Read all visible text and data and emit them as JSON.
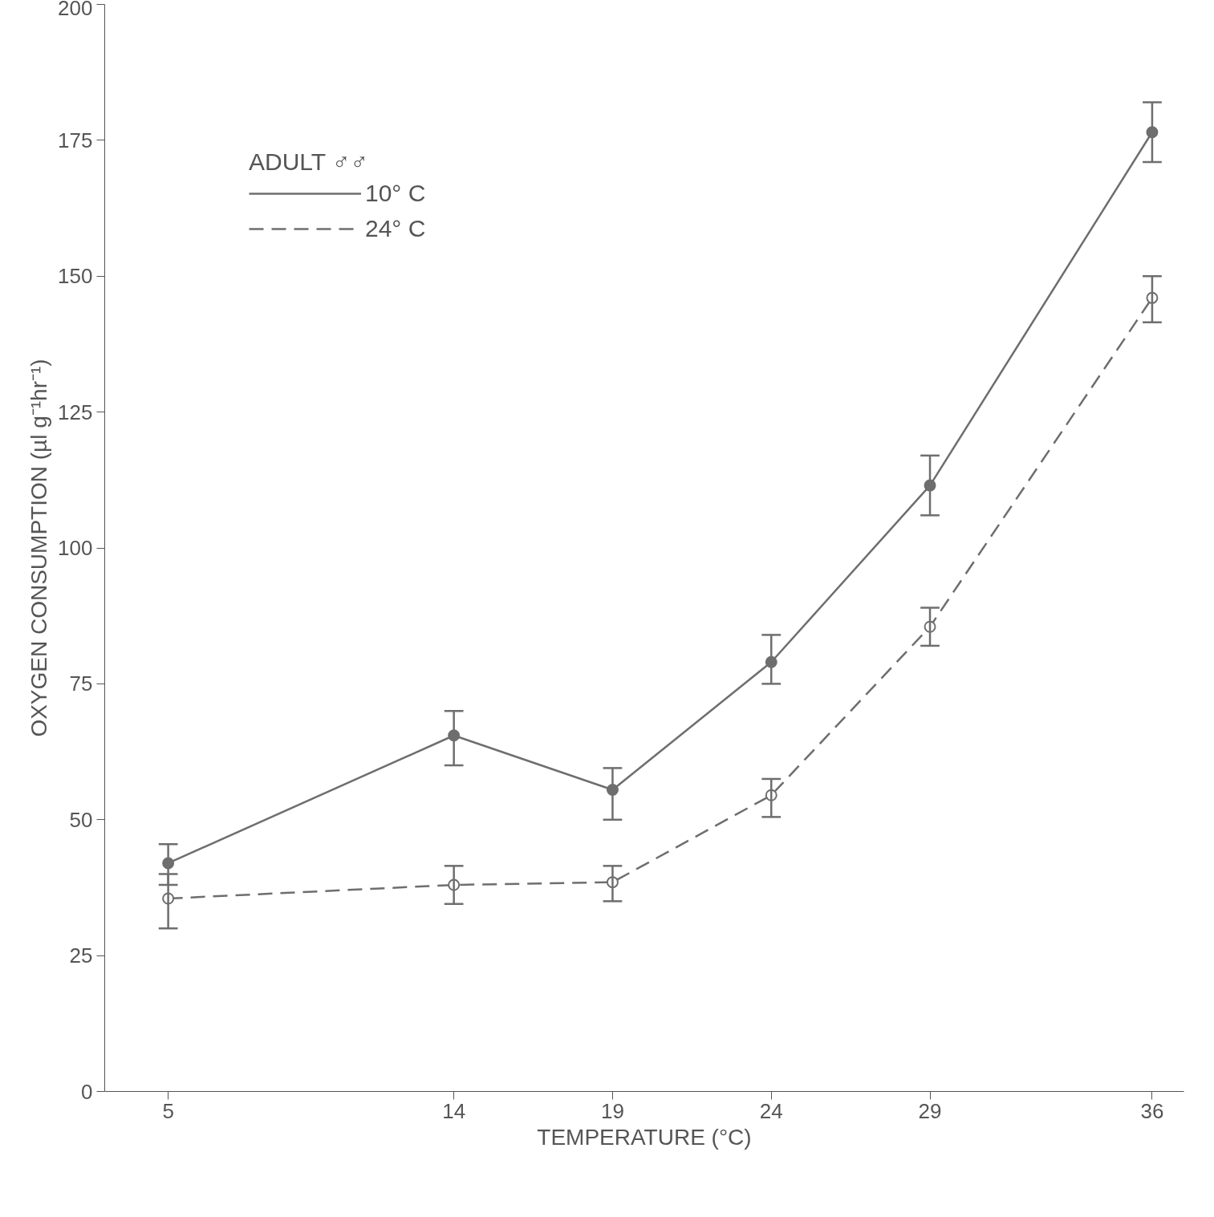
{
  "chart_data": {
    "type": "line",
    "xlabel": "TEMPERATURE (°C)",
    "ylabel": "OXYGEN CONSUMPTION (µl g⁻¹hr⁻¹)",
    "legend_title": "ADULT ♂♂",
    "x": [
      5,
      14,
      19,
      24,
      29,
      36
    ],
    "series": [
      {
        "name": "10° C",
        "color": "#6e6e6e",
        "line_style": "solid",
        "marker": "circle",
        "values": [
          42,
          65.5,
          55.5,
          79,
          111.5,
          176.5
        ],
        "errors": [
          [
            38,
            45.5
          ],
          [
            60,
            70
          ],
          [
            50,
            59.5
          ],
          [
            75,
            84
          ],
          [
            106,
            117
          ],
          [
            171,
            182
          ]
        ]
      },
      {
        "name": "24° C",
        "color": "#6e6e6e",
        "line_style": "dashed",
        "marker": "circle",
        "values": [
          35.5,
          38,
          38.5,
          54.5,
          85.5,
          146
        ],
        "errors": [
          [
            30,
            40
          ],
          [
            34.5,
            41.5
          ],
          [
            35,
            41.5
          ],
          [
            50.5,
            57.5
          ],
          [
            82,
            89
          ],
          [
            141.5,
            150
          ]
        ]
      }
    ],
    "xlim": [
      3,
      37
    ],
    "ylim": [
      0,
      200
    ],
    "xticks": [
      5,
      14,
      19,
      24,
      29,
      36
    ],
    "yticks": [
      0,
      25,
      50,
      75,
      100,
      125,
      150,
      175,
      200
    ],
    "grid": false,
    "legend": "top left"
  }
}
